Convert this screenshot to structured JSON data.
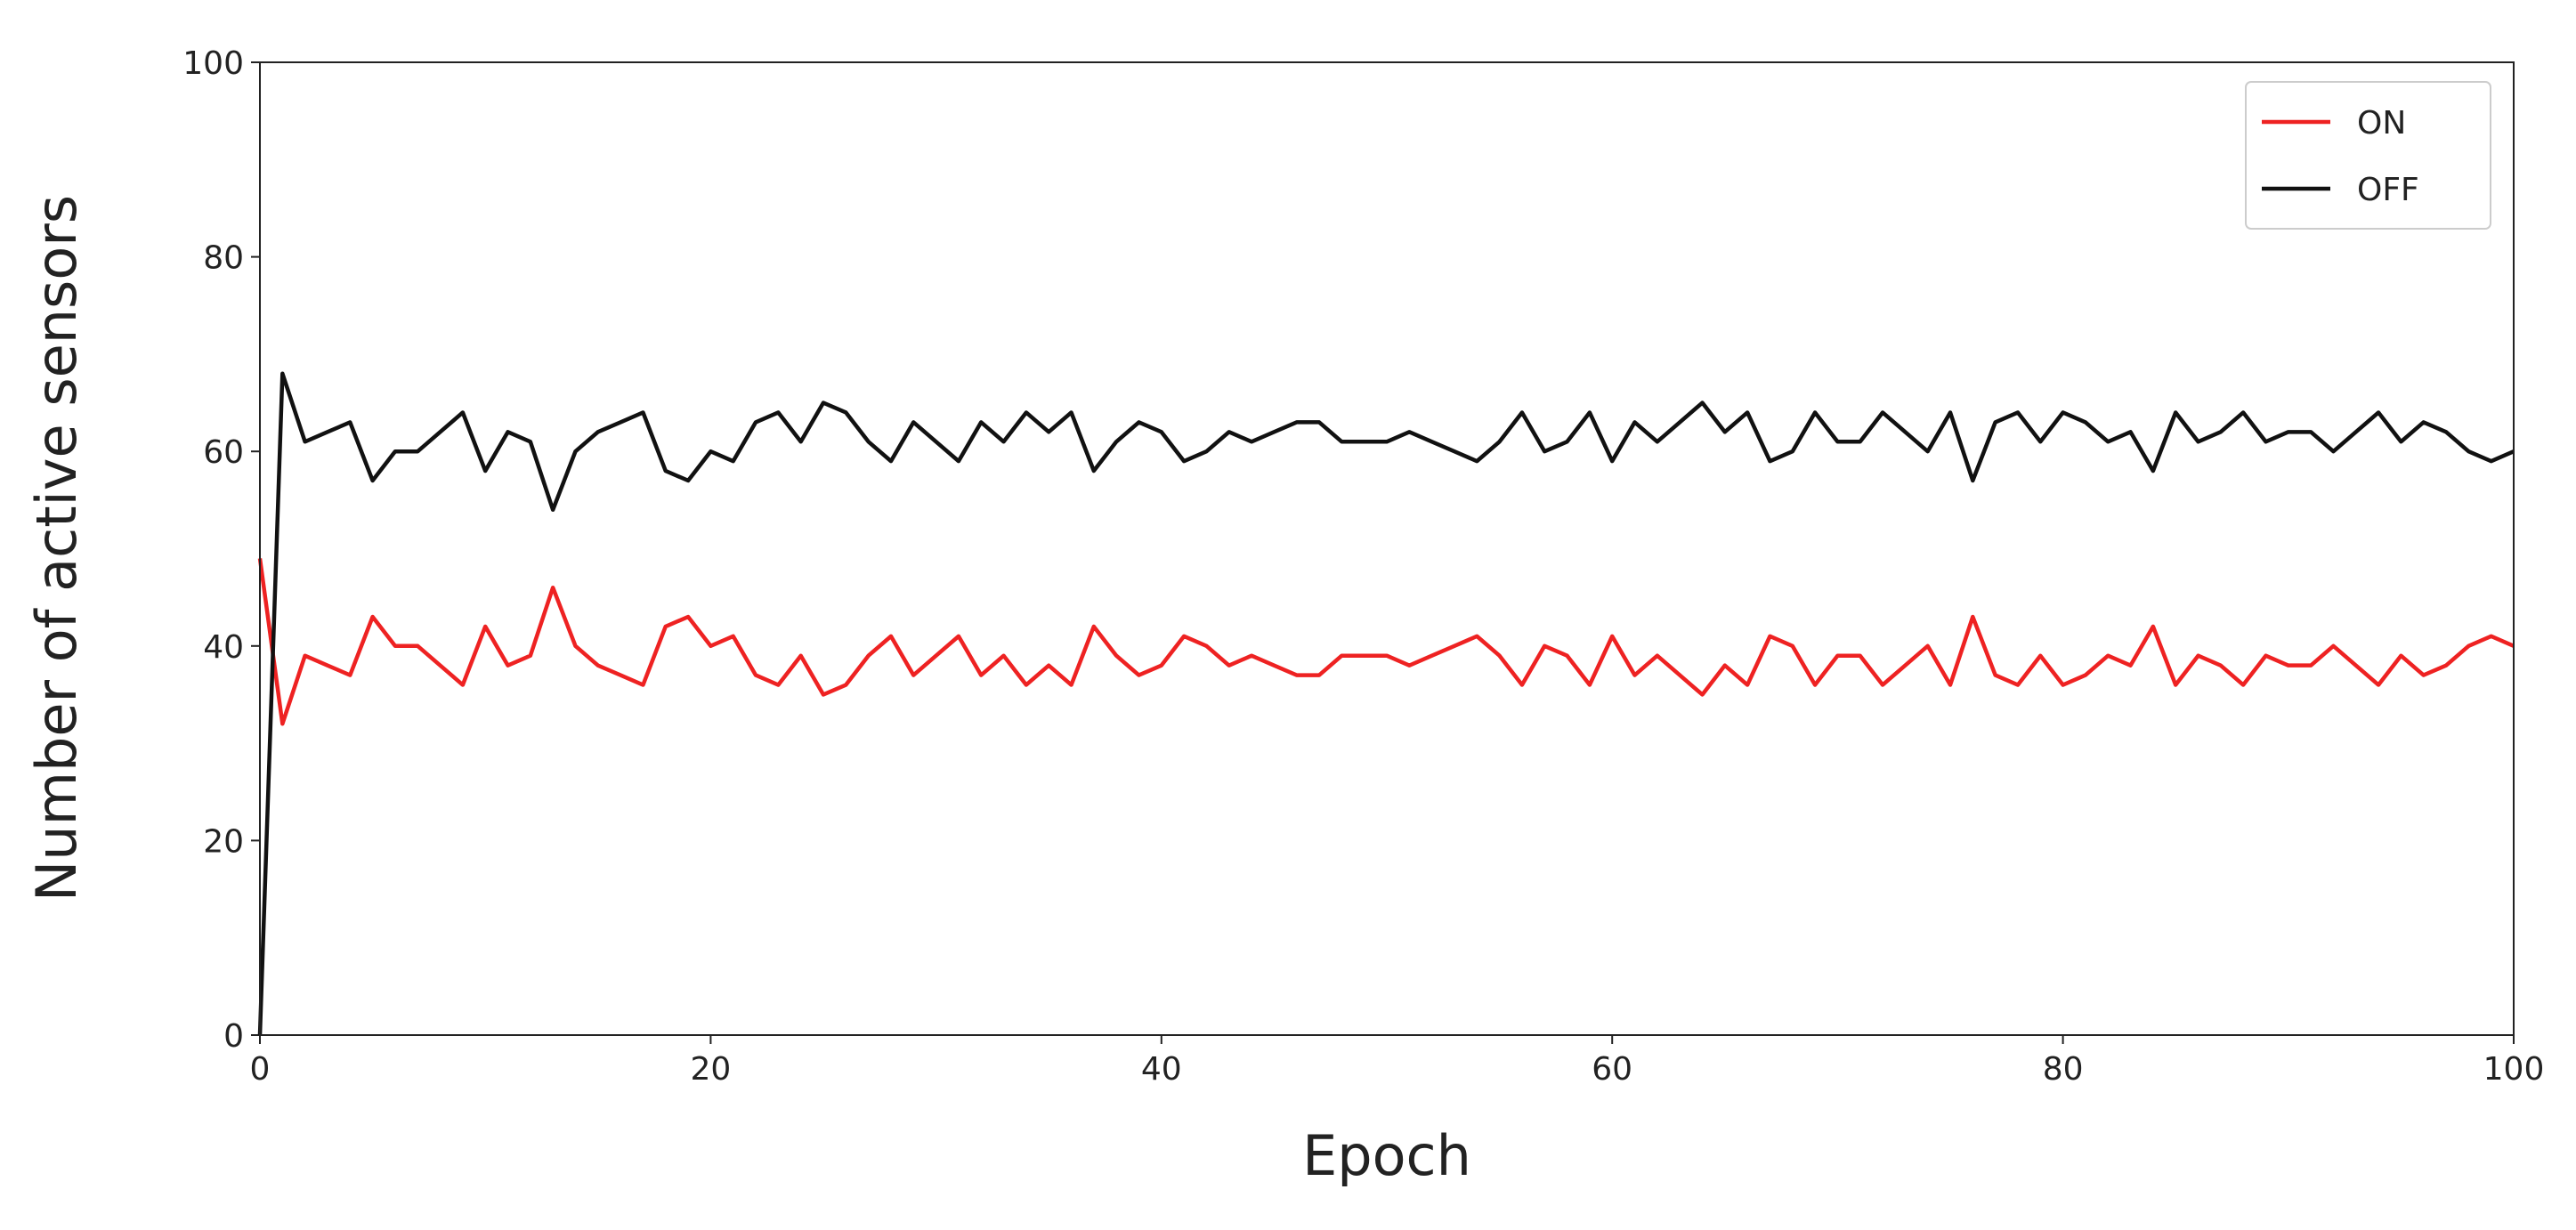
{
  "chart_data": {
    "type": "line",
    "x_label": "Epoch",
    "y_label": "Number of active sensors",
    "x": [
      0,
      1,
      2,
      3,
      4,
      5,
      6,
      7,
      8,
      9,
      10,
      11,
      12,
      13,
      14,
      15,
      16,
      17,
      18,
      19,
      20,
      21,
      22,
      23,
      24,
      25,
      26,
      27,
      28,
      29,
      30,
      31,
      32,
      33,
      34,
      35,
      36,
      37,
      38,
      39,
      40,
      41,
      42,
      43,
      44,
      45,
      46,
      47,
      48,
      49,
      50,
      51,
      52,
      53,
      54,
      55,
      56,
      57,
      58,
      59,
      60,
      61,
      62,
      63,
      64,
      65,
      66,
      67,
      68,
      69,
      70,
      71,
      72,
      73,
      74,
      75,
      76,
      77,
      78,
      79,
      80,
      81,
      82,
      83,
      84,
      85,
      86,
      87,
      88,
      89,
      90,
      91,
      92,
      93,
      94,
      95,
      96,
      97,
      98,
      99,
      100
    ],
    "series": [
      {
        "name": "ON",
        "color": "#ee2222",
        "values": [
          49,
          32,
          39,
          38,
          37,
          43,
          40,
          40,
          38,
          36,
          42,
          38,
          39,
          46,
          40,
          38,
          37,
          36,
          42,
          43,
          40,
          41,
          37,
          36,
          39,
          35,
          36,
          39,
          41,
          37,
          39,
          41,
          37,
          39,
          36,
          38,
          36,
          42,
          39,
          37,
          38,
          41,
          40,
          38,
          39,
          38,
          37,
          37,
          39,
          39,
          39,
          38,
          39,
          40,
          41,
          39,
          36,
          40,
          39,
          36,
          41,
          37,
          39,
          37,
          35,
          38,
          36,
          41,
          40,
          36,
          39,
          39,
          36,
          38,
          40,
          36,
          43,
          37,
          36,
          39,
          36,
          37,
          39,
          38,
          42,
          36,
          39,
          38,
          36,
          39,
          38,
          38,
          40,
          38,
          36,
          39,
          37,
          38,
          40,
          41,
          40
        ]
      },
      {
        "name": "OFF",
        "color": "#111111",
        "values": [
          0,
          68,
          61,
          62,
          63,
          57,
          60,
          60,
          62,
          64,
          58,
          62,
          61,
          54,
          60,
          62,
          63,
          64,
          58,
          57,
          60,
          59,
          63,
          64,
          61,
          65,
          64,
          61,
          59,
          63,
          61,
          59,
          63,
          61,
          64,
          62,
          64,
          58,
          61,
          63,
          62,
          59,
          60,
          62,
          61,
          62,
          63,
          63,
          61,
          61,
          61,
          62,
          61,
          60,
          59,
          61,
          64,
          60,
          61,
          64,
          59,
          63,
          61,
          63,
          65,
          62,
          64,
          59,
          60,
          64,
          61,
          61,
          64,
          62,
          60,
          64,
          57,
          63,
          64,
          61,
          64,
          63,
          61,
          62,
          58,
          64,
          61,
          62,
          64,
          61,
          62,
          62,
          60,
          62,
          64,
          61,
          63,
          62,
          60,
          59,
          60
        ]
      }
    ],
    "xlim": [
      0,
      100
    ],
    "xticks": [
      0,
      20,
      40,
      60,
      80,
      100
    ],
    "ylim": [
      0,
      100
    ],
    "yticks": [
      0,
      20,
      40,
      60,
      80,
      100
    ],
    "grid": false,
    "legend": "upper right"
  }
}
